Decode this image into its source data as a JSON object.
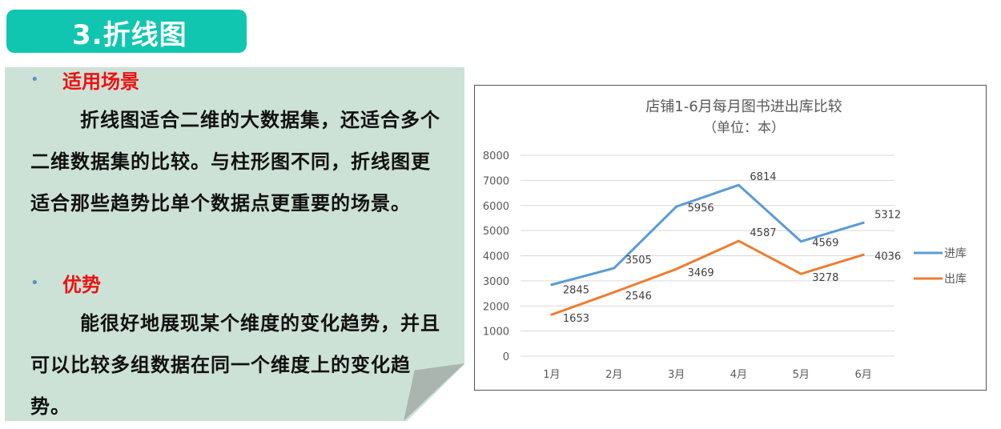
{
  "slide": {
    "heading": "3.折线图"
  },
  "content": {
    "section1": {
      "label": "适用场景",
      "text": "折线图适合二维的大数据集，还适合多个二维数据集的比较。与柱形图不同，折线图更适合那些趋势比单个数据点更重要的场景。"
    },
    "section2": {
      "label": "优势",
      "text": "能很好地展现某个维度的变化趋势，并且可以比较多组数据在同一个维度上的变化趋势。"
    }
  },
  "chart_data": {
    "type": "line",
    "title": "店铺1-6月每月图书进出库比较",
    "subtitle": "（单位：本）",
    "categories": [
      "1月",
      "2月",
      "3月",
      "4月",
      "5月",
      "6月"
    ],
    "y_ticks": [
      "0",
      "1000",
      "2000",
      "3000",
      "4000",
      "5000",
      "6000",
      "7000",
      "8000"
    ],
    "ylim": [
      0,
      8000
    ],
    "grid": true,
    "legend_position": "right",
    "series": [
      {
        "name": "进库",
        "color": "#5b9bd5",
        "values": [
          2845,
          3505,
          5956,
          6814,
          4569,
          5312
        ]
      },
      {
        "name": "出库",
        "color": "#ed7d31",
        "values": [
          1653,
          2546,
          3469,
          4587,
          3278,
          4036
        ]
      }
    ]
  }
}
